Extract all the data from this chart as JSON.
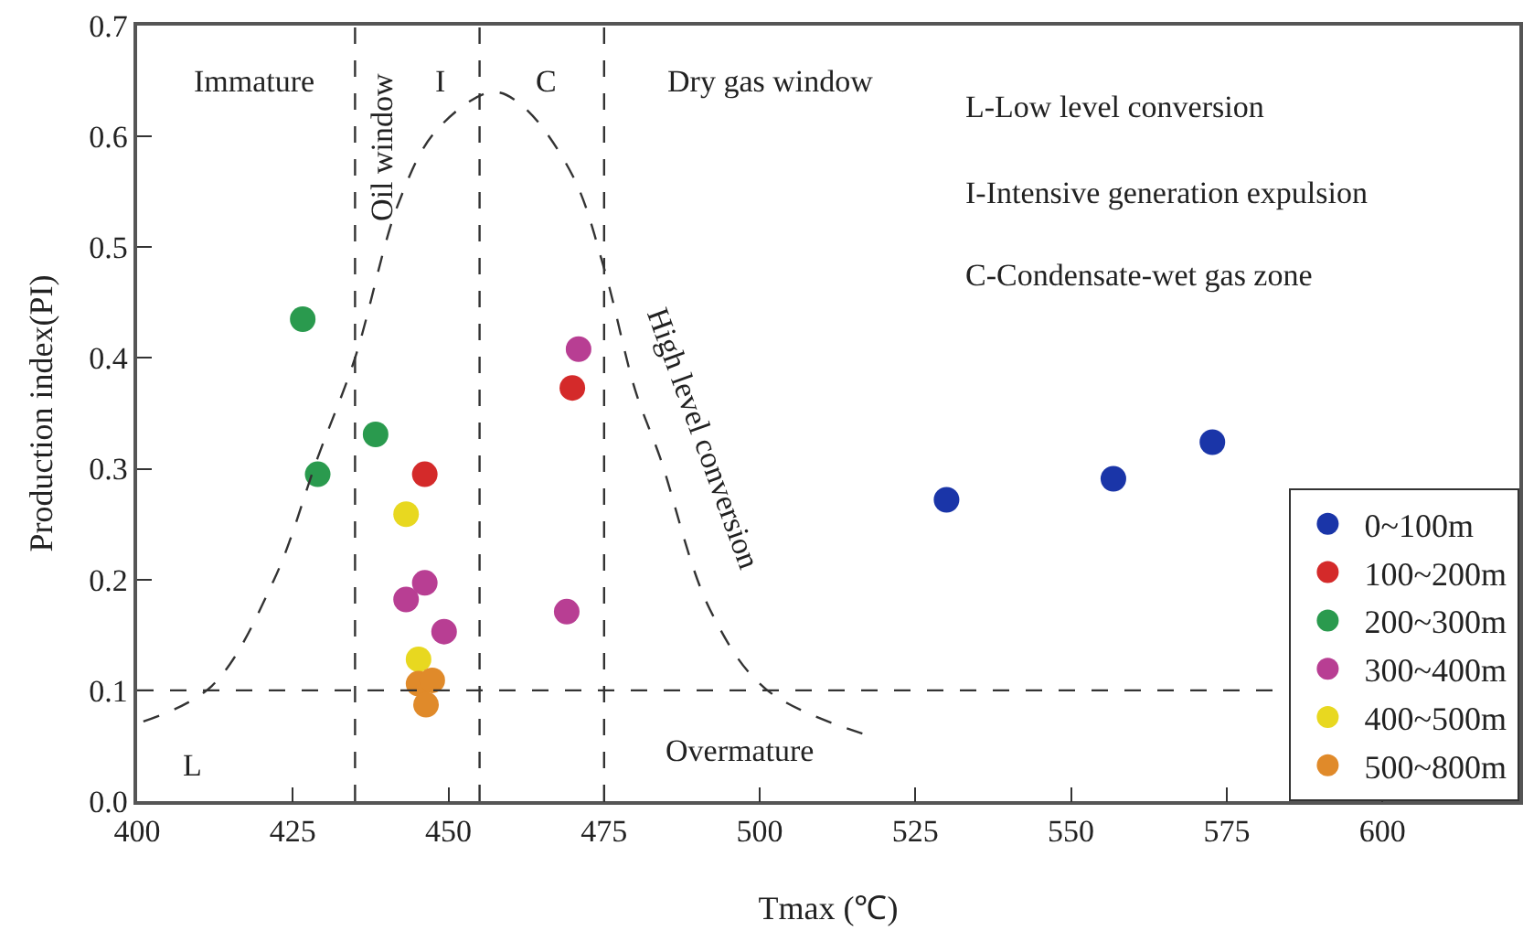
{
  "chart_data": {
    "type": "scatter",
    "xlabel": "Tmax (℃)",
    "ylabel": "Production index(PI)",
    "xlim": [
      400,
      622
    ],
    "xticks": [
      400,
      425,
      450,
      475,
      500,
      525,
      550,
      575,
      600
    ],
    "ylim": [
      0,
      0.7
    ],
    "yticks": [
      {
        "value": 0,
        "label": "0.0"
      },
      {
        "value": 0.1,
        "label": "0.1"
      },
      {
        "value": 0.2,
        "label": "0.2"
      },
      {
        "value": 0.3,
        "label": "0.3"
      },
      {
        "value": 0.4,
        "label": "0.4"
      },
      {
        "value": 0.5,
        "label": "0.5"
      },
      {
        "value": 0.6,
        "label": "0.6"
      },
      {
        "value": 0.7,
        "label": "0.7"
      }
    ],
    "grid": false,
    "legend": "bottom right",
    "marker": "circle",
    "series": [
      {
        "name": "0~100m",
        "color": "#1a35a8",
        "x": [
          530.0,
          556.8,
          572.7
        ],
        "values": [
          0.272,
          0.291,
          0.324
        ]
      },
      {
        "name": "100~200m",
        "color": "#d42a2a",
        "x": [
          446.2,
          469.9
        ],
        "values": [
          0.295,
          0.373
        ]
      },
      {
        "name": "200~300m",
        "color": "#2a9a4e",
        "x": [
          426.6,
          429.0,
          438.3
        ],
        "values": [
          0.435,
          0.295,
          0.331
        ]
      },
      {
        "name": "300~400m",
        "color": "#b83e93",
        "x": [
          470.9,
          443.2,
          446.2,
          449.3,
          469.0
        ],
        "values": [
          0.408,
          0.182,
          0.197,
          0.153,
          0.171
        ]
      },
      {
        "name": "400~500m",
        "color": "#e8d820",
        "x": [
          443.2,
          445.2
        ],
        "values": [
          0.259,
          0.128
        ]
      },
      {
        "name": "500~800m",
        "color": "#e08a2a",
        "x": [
          445.2,
          447.4,
          446.4
        ],
        "values": [
          0.106,
          0.109,
          0.087
        ]
      },
      {
        "type": "line",
        "color": "#333333",
        "line_style": "dashed",
        "marker": "none",
        "x": [
          401,
          412,
          422,
          429,
          435,
          442,
          448,
          457,
          462,
          470,
          475,
          480,
          484,
          492,
          501,
          517
        ],
        "values": [
          0.072,
          0.104,
          0.2,
          0.31,
          0.4,
          0.54,
          0.605,
          0.64,
          0.627,
          0.564,
          0.481,
          0.371,
          0.31,
          0.173,
          0.101,
          0.06
        ]
      }
    ],
    "ref_lines": [
      {
        "axis": "x",
        "value": 435,
        "line_style": "dashed",
        "color": "#333333"
      },
      {
        "axis": "x",
        "value": 455,
        "line_style": "dashed",
        "color": "#333333"
      },
      {
        "axis": "x",
        "value": 475,
        "line_style": "dashed",
        "color": "#333333"
      },
      {
        "axis": "y",
        "value": 0.1,
        "line_style": "dashed",
        "color": "#333333"
      }
    ],
    "annotations": [
      "Immature",
      "Oil window",
      "I",
      "C",
      "Dry gas window",
      "L-Low level conversion",
      "I-Intensive generation expulsion",
      "C-Condensate-wet gas zone",
      "High level conversion",
      "L",
      "Overmature"
    ]
  }
}
